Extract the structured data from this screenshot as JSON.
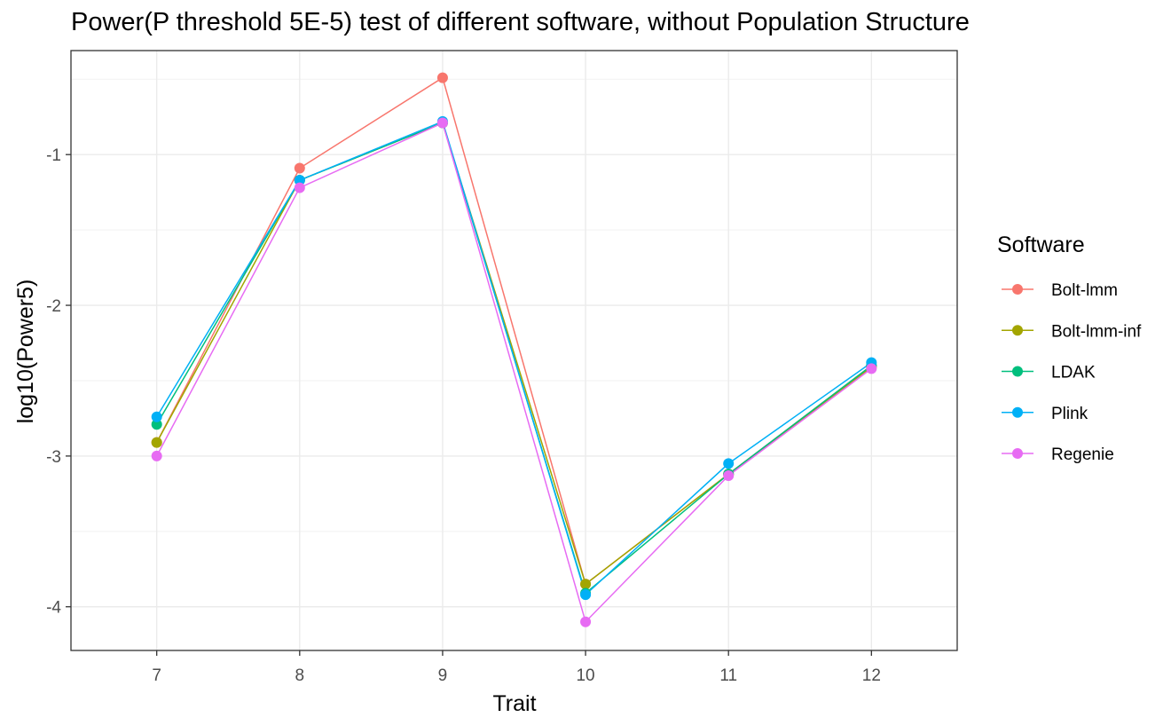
{
  "chart_data": {
    "type": "line",
    "title": "Power(P threshold 5E-5) test of different software, without Population Structure",
    "xlabel": "Trait",
    "ylabel": "log10(Power5)",
    "categories": [
      "7",
      "8",
      "9",
      "10",
      "11",
      "12"
    ],
    "x": [
      7,
      8,
      9,
      10,
      11,
      12
    ],
    "xlim": [
      6.4,
      12.6
    ],
    "ylim": [
      -4.29,
      -0.31
    ],
    "yticks": [
      -4,
      -3,
      -2,
      -1
    ],
    "ytick_labels": [
      "-4",
      "-3",
      "-2",
      "-1"
    ],
    "grid": true,
    "legend": {
      "title": "Software",
      "position": "right"
    },
    "series": [
      {
        "name": "Bolt-lmm",
        "color": "#F8766D",
        "values": [
          -2.91,
          -1.09,
          -0.49,
          -3.85,
          -3.12,
          -2.4
        ]
      },
      {
        "name": "Bolt-lmm-inf",
        "color": "#A3A500",
        "values": [
          -2.91,
          -1.17,
          -0.79,
          -3.85,
          -3.12,
          -2.41
        ]
      },
      {
        "name": "LDAK",
        "color": "#00BF7D",
        "values": [
          -2.79,
          -1.17,
          -0.79,
          -3.91,
          -3.12,
          -2.4
        ]
      },
      {
        "name": "Plink",
        "color": "#00B0F6",
        "values": [
          -2.74,
          -1.17,
          -0.78,
          -3.92,
          -3.05,
          -2.38
        ]
      },
      {
        "name": "Regenie",
        "color": "#E76BF3",
        "values": [
          -3.0,
          -1.22,
          -0.79,
          -4.1,
          -3.13,
          -2.42
        ]
      }
    ]
  }
}
